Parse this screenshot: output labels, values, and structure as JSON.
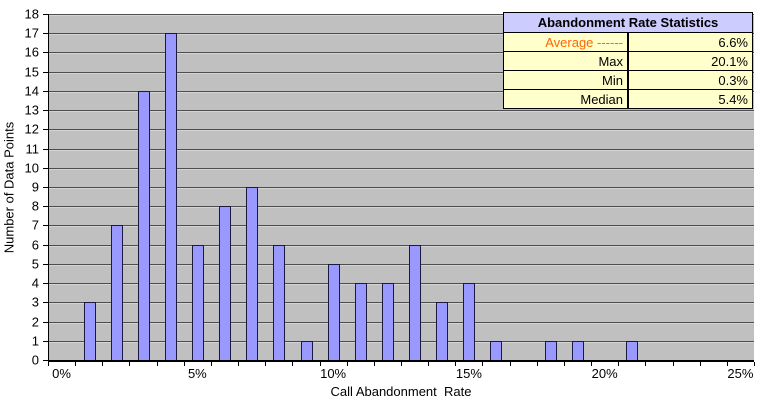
{
  "chart_data": {
    "type": "bar",
    "title": "",
    "xlabel": "Call Abandonment  Rate",
    "ylabel": "Number of Data Points",
    "categories": [
      "1%",
      "2%",
      "3%",
      "4%",
      "5%",
      "6%",
      "7%",
      "8%",
      "9%",
      "10%",
      "11%",
      "12%",
      "13%",
      "14%",
      "15%",
      "16%",
      "17%",
      "18%",
      "19%",
      "20%",
      "21%"
    ],
    "values": [
      3,
      7,
      14,
      17,
      6,
      8,
      9,
      6,
      1,
      5,
      4,
      4,
      6,
      3,
      4,
      1,
      0,
      1,
      1,
      0,
      1
    ],
    "ylim": [
      0,
      18
    ],
    "y_ticks": [
      0,
      1,
      2,
      3,
      4,
      5,
      6,
      7,
      8,
      9,
      10,
      11,
      12,
      13,
      14,
      15,
      16,
      17,
      18
    ],
    "x_tick_labels": [
      "0%",
      "5%",
      "10%",
      "15%",
      "20%",
      "25%"
    ],
    "x_tick_slots": [
      0,
      5,
      10,
      15,
      20,
      25
    ],
    "x_slot_count": 26,
    "first_bin_slot": 1,
    "grid": "horizontal-major",
    "legend_position": "none"
  },
  "stats_table": {
    "title": "Abandonment Rate Statistics",
    "rows": [
      {
        "label": "Average ------",
        "value": "6.6%",
        "label_color": "#FF6600"
      },
      {
        "label": "Max",
        "value": "20.1%"
      },
      {
        "label": "Min",
        "value": "0.3%"
      },
      {
        "label": "Median",
        "value": "5.4%"
      }
    ]
  },
  "colors": {
    "bar_fill": "#9999FF",
    "bar_border": "#1a1a40",
    "plot_bg": "#C0C0C0",
    "gridline": "#4d4d4d",
    "axis": "#000000",
    "table_header_bg": "#CCCCFF",
    "table_row_bg": "#FFFFCC",
    "table_border": "#000000",
    "average_label": "#FF6600"
  }
}
